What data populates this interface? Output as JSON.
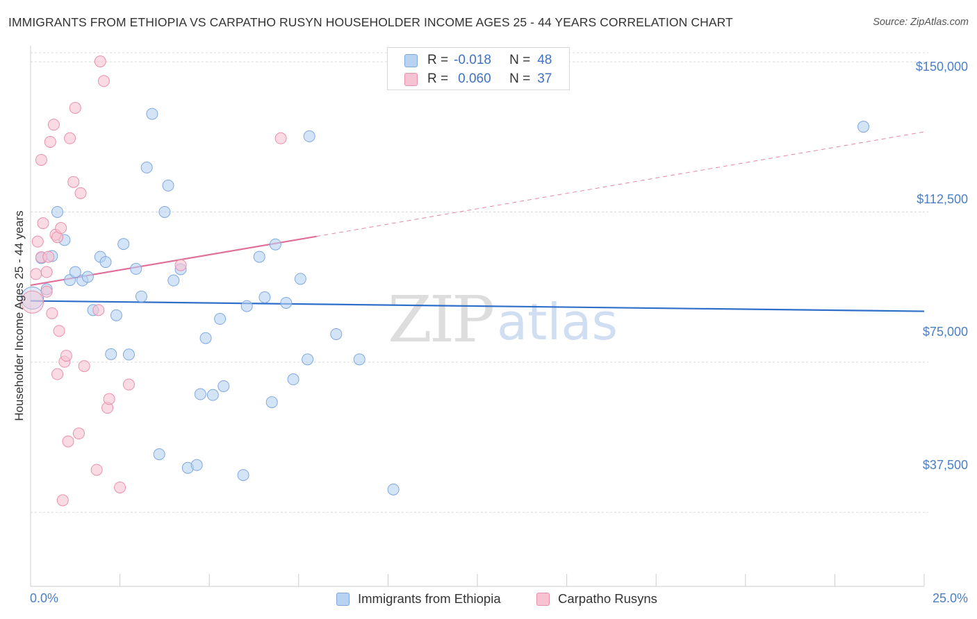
{
  "title": "IMMIGRANTS FROM ETHIOPIA VS CARPATHO RUSYN HOUSEHOLDER INCOME AGES 25 - 44 YEARS CORRELATION CHART",
  "source": "Source: ZipAtlas.com",
  "watermark": {
    "zip": "ZIP",
    "atlas": "atlas"
  },
  "colors": {
    "blue_fill": "#b8d2f2",
    "blue_stroke": "#7fa8e0",
    "blue_line": "#2e6fca",
    "pink_fill": "#f7c3d2",
    "pink_stroke": "#e890ab",
    "pink_line": "#e0709a",
    "grid": "#d9d9d9",
    "axis": "#cccccc",
    "tick_text": "#4a7fc6"
  },
  "legend": {
    "rows": [
      {
        "r_label": "R =",
        "r_value": "-0.018",
        "n_label": "N =",
        "n_value": "48"
      },
      {
        "r_label": "R =",
        "r_value": "0.060",
        "n_label": "N =",
        "n_value": "37"
      }
    ]
  },
  "chart_data": {
    "type": "scatter",
    "title": "IMMIGRANTS FROM ETHIOPIA VS CARPATHO RUSYN HOUSEHOLDER INCOME AGES 25 - 44 YEARS CORRELATION CHART",
    "xlabel": "",
    "ylabel": "Householder Income Ages 25 - 44 years",
    "xlim": [
      0,
      25
    ],
    "ylim": [
      19000,
      154000
    ],
    "x_tick_labels": [
      "0.0%",
      "25.0%"
    ],
    "y_ticks": [
      37500,
      75000,
      112500,
      150000
    ],
    "y_tick_labels": [
      "$37,500",
      "$75,000",
      "$112,500",
      "$150,000"
    ],
    "grid": true,
    "legend_position": "bottom",
    "series": [
      {
        "name": "Immigrants from Ethiopia",
        "r": -0.018,
        "n": 48,
        "trend": {
          "x": [
            0,
            25
          ],
          "y": [
            90300,
            87700
          ],
          "style": "solid"
        },
        "points": [
          {
            "x": 0.05,
            "y": 91000,
            "size": "large"
          },
          {
            "x": 0.3,
            "y": 101000
          },
          {
            "x": 0.45,
            "y": 93200
          },
          {
            "x": 0.6,
            "y": 101500
          },
          {
            "x": 0.75,
            "y": 112500
          },
          {
            "x": 0.95,
            "y": 105500
          },
          {
            "x": 1.1,
            "y": 95500
          },
          {
            "x": 1.25,
            "y": 97500
          },
          {
            "x": 1.45,
            "y": 95400
          },
          {
            "x": 1.6,
            "y": 96300
          },
          {
            "x": 1.75,
            "y": 88000
          },
          {
            "x": 1.95,
            "y": 101300
          },
          {
            "x": 2.1,
            "y": 100000
          },
          {
            "x": 2.25,
            "y": 77000
          },
          {
            "x": 2.4,
            "y": 86700
          },
          {
            "x": 2.6,
            "y": 104500
          },
          {
            "x": 2.75,
            "y": 76900
          },
          {
            "x": 2.95,
            "y": 98300
          },
          {
            "x": 3.1,
            "y": 91400
          },
          {
            "x": 3.25,
            "y": 123600
          },
          {
            "x": 3.4,
            "y": 137000
          },
          {
            "x": 3.6,
            "y": 52000
          },
          {
            "x": 3.75,
            "y": 112500
          },
          {
            "x": 3.85,
            "y": 119100
          },
          {
            "x": 4.0,
            "y": 95400
          },
          {
            "x": 4.2,
            "y": 98200
          },
          {
            "x": 4.4,
            "y": 48600
          },
          {
            "x": 4.65,
            "y": 49300
          },
          {
            "x": 4.75,
            "y": 67000
          },
          {
            "x": 4.9,
            "y": 81000
          },
          {
            "x": 5.1,
            "y": 66800
          },
          {
            "x": 5.3,
            "y": 85800
          },
          {
            "x": 5.4,
            "y": 69000
          },
          {
            "x": 5.95,
            "y": 46800
          },
          {
            "x": 6.05,
            "y": 89000
          },
          {
            "x": 6.4,
            "y": 101300
          },
          {
            "x": 6.55,
            "y": 91200
          },
          {
            "x": 6.75,
            "y": 65000
          },
          {
            "x": 6.85,
            "y": 104400
          },
          {
            "x": 7.15,
            "y": 89800
          },
          {
            "x": 7.35,
            "y": 70700
          },
          {
            "x": 7.55,
            "y": 95800
          },
          {
            "x": 7.75,
            "y": 75700
          },
          {
            "x": 7.8,
            "y": 131400
          },
          {
            "x": 8.55,
            "y": 82000
          },
          {
            "x": 9.2,
            "y": 75700
          },
          {
            "x": 10.15,
            "y": 43200
          },
          {
            "x": 23.3,
            "y": 133800
          }
        ]
      },
      {
        "name": "Carpatho Rusyns",
        "r": 0.06,
        "n": 37,
        "trend": {
          "x": [
            0,
            8
          ],
          "y": [
            94200,
            106400
          ],
          "style": "solid",
          "extension": {
            "x": [
              8,
              25
            ],
            "y": [
              106400,
              132500
            ],
            "style": "dashed"
          }
        },
        "points": [
          {
            "x": 0.05,
            "y": 90000,
            "size": "large"
          },
          {
            "x": 0.15,
            "y": 97000
          },
          {
            "x": 0.2,
            "y": 105100
          },
          {
            "x": 0.3,
            "y": 101200
          },
          {
            "x": 0.3,
            "y": 125500
          },
          {
            "x": 0.35,
            "y": 109700
          },
          {
            "x": 0.45,
            "y": 97500
          },
          {
            "x": 0.45,
            "y": 92600
          },
          {
            "x": 0.5,
            "y": 101300
          },
          {
            "x": 0.55,
            "y": 130000
          },
          {
            "x": 0.6,
            "y": 87200
          },
          {
            "x": 0.65,
            "y": 134300
          },
          {
            "x": 0.7,
            "y": 106800
          },
          {
            "x": 0.75,
            "y": 72000
          },
          {
            "x": 0.75,
            "y": 106200
          },
          {
            "x": 0.8,
            "y": 82800
          },
          {
            "x": 0.85,
            "y": 108500
          },
          {
            "x": 0.9,
            "y": 40500
          },
          {
            "x": 0.95,
            "y": 75100
          },
          {
            "x": 1.0,
            "y": 76600
          },
          {
            "x": 1.05,
            "y": 55200
          },
          {
            "x": 1.1,
            "y": 130900
          },
          {
            "x": 1.2,
            "y": 120000
          },
          {
            "x": 1.25,
            "y": 138500
          },
          {
            "x": 1.35,
            "y": 57200
          },
          {
            "x": 1.4,
            "y": 117200
          },
          {
            "x": 1.5,
            "y": 74000
          },
          {
            "x": 1.85,
            "y": 48100
          },
          {
            "x": 1.9,
            "y": 88000
          },
          {
            "x": 1.95,
            "y": 150100
          },
          {
            "x": 2.05,
            "y": 145200
          },
          {
            "x": 2.15,
            "y": 63600
          },
          {
            "x": 2.2,
            "y": 65800
          },
          {
            "x": 2.5,
            "y": 43700
          },
          {
            "x": 2.75,
            "y": 69400
          },
          {
            "x": 4.2,
            "y": 99200
          },
          {
            "x": 7.0,
            "y": 130900
          }
        ]
      }
    ]
  }
}
